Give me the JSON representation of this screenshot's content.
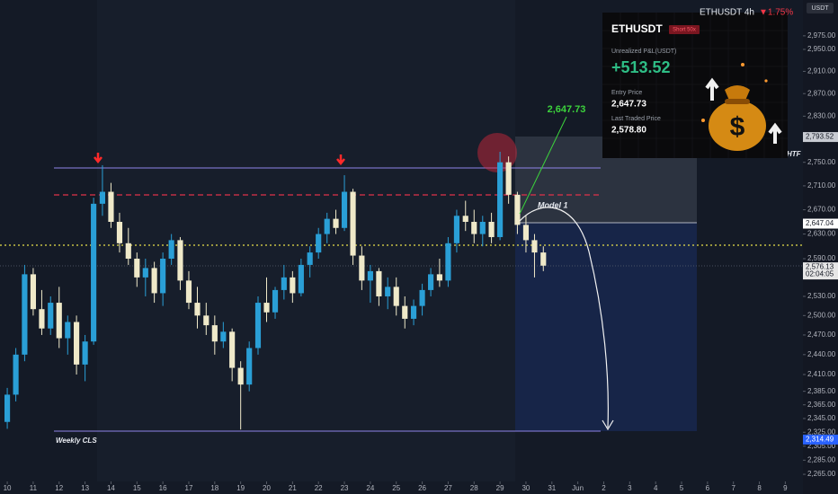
{
  "header": {
    "symbol": "ETHUSDT 4h",
    "change": "▼1.75%",
    "currency": "USDT"
  },
  "card": {
    "symbol": "ETHUSDT",
    "side": "Short 50x",
    "pnl_label": "Unrealized P&L(USDT)",
    "pnl": "+513.52",
    "entry_label": "Entry Price",
    "entry": "2,647.73",
    "last_label": "Last Traded Price",
    "last": "2,578.80"
  },
  "annotations": {
    "entry_price": "2,647.73",
    "model": "Model 1",
    "weekly": "Weekly CLS",
    "htf": "HTF"
  },
  "chart_data": {
    "type": "candlestick",
    "log": true,
    "grid": false,
    "up_color": "#2a9fd6",
    "down_color": "#efe9c9",
    "x": [
      10,
      10.33,
      10.67,
      11,
      11.33,
      11.67,
      12,
      12.33,
      12.67,
      13,
      13.33,
      13.67,
      14,
      14.33,
      14.67,
      15,
      15.33,
      15.67,
      16,
      16.33,
      16.67,
      17,
      17.33,
      17.67,
      18,
      18.33,
      18.67,
      19,
      19.33,
      19.67,
      20,
      20.33,
      20.67,
      21,
      21.33,
      21.67,
      22,
      22.33,
      22.67,
      23,
      23.33,
      23.67,
      24,
      24.33,
      24.67,
      25,
      25.33,
      25.67,
      26,
      26.33,
      26.67,
      27,
      27.33,
      27.67,
      28,
      28.33,
      28.67,
      29,
      29.33,
      29.67,
      30,
      30.33,
      30.67
    ],
    "open": [
      2340,
      2380,
      2440,
      2565,
      2510,
      2480,
      2520,
      2465,
      2490,
      2425,
      2460,
      2680,
      2700,
      2650,
      2615,
      2590,
      2560,
      2575,
      2535,
      2590,
      2620,
      2555,
      2520,
      2500,
      2485,
      2460,
      2475,
      2420,
      2395,
      2450,
      2520,
      2505,
      2540,
      2560,
      2535,
      2580,
      2600,
      2630,
      2655,
      2640,
      2700,
      2595,
      2555,
      2570,
      2530,
      2545,
      2515,
      2495,
      2515,
      2540,
      2565,
      2555,
      2615,
      2660,
      2650,
      2630,
      2650,
      2625,
      2750,
      2695,
      2645,
      2620,
      2600
    ],
    "high": [
      2390,
      2450,
      2580,
      2575,
      2540,
      2530,
      2545,
      2500,
      2500,
      2470,
      2690,
      2745,
      2715,
      2665,
      2640,
      2600,
      2590,
      2585,
      2600,
      2630,
      2625,
      2570,
      2545,
      2520,
      2500,
      2490,
      2480,
      2430,
      2460,
      2530,
      2560,
      2545,
      2580,
      2570,
      2590,
      2610,
      2640,
      2665,
      2670,
      2728,
      2705,
      2610,
      2580,
      2575,
      2560,
      2560,
      2530,
      2525,
      2550,
      2575,
      2590,
      2625,
      2670,
      2685,
      2670,
      2660,
      2665,
      2768,
      2760,
      2700,
      2660,
      2630,
      2610
    ],
    "low": [
      2330,
      2370,
      2430,
      2500,
      2470,
      2470,
      2450,
      2440,
      2410,
      2400,
      2455,
      2660,
      2640,
      2600,
      2580,
      2545,
      2530,
      2520,
      2515,
      2580,
      2540,
      2510,
      2480,
      2470,
      2440,
      2450,
      2400,
      2329,
      2385,
      2440,
      2490,
      2495,
      2525,
      2520,
      2530,
      2560,
      2590,
      2615,
      2630,
      2635,
      2580,
      2540,
      2520,
      2515,
      2510,
      2500,
      2480,
      2485,
      2500,
      2530,
      2545,
      2545,
      2600,
      2635,
      2615,
      2610,
      2615,
      2620,
      2680,
      2630,
      2600,
      2560,
      2570
    ],
    "close": [
      2380,
      2440,
      2565,
      2510,
      2480,
      2520,
      2465,
      2490,
      2425,
      2460,
      2680,
      2700,
      2650,
      2615,
      2590,
      2560,
      2575,
      2535,
      2590,
      2620,
      2555,
      2520,
      2500,
      2485,
      2460,
      2475,
      2420,
      2395,
      2450,
      2520,
      2505,
      2540,
      2560,
      2535,
      2580,
      2600,
      2630,
      2655,
      2640,
      2700,
      2595,
      2555,
      2570,
      2530,
      2545,
      2515,
      2495,
      2515,
      2540,
      2565,
      2555,
      2615,
      2660,
      2650,
      2630,
      2650,
      2625,
      2750,
      2695,
      2645,
      2620,
      2600,
      2578.8
    ],
    "xlim": [
      9.72,
      40.68
    ],
    "xticks": [
      10,
      11,
      12,
      13,
      14,
      15,
      16,
      17,
      18,
      19,
      20,
      21,
      22,
      23,
      24,
      25,
      26,
      27,
      28,
      29,
      30,
      31,
      {
        "value": 32,
        "label": "Jun"
      },
      {
        "value": 33,
        "label": "2"
      },
      {
        "value": 34,
        "label": "3"
      },
      {
        "value": 35,
        "label": "4"
      },
      {
        "value": 36,
        "label": "5"
      },
      {
        "value": 37,
        "label": "6"
      },
      {
        "value": 38,
        "label": "7"
      },
      {
        "value": 39,
        "label": "8"
      },
      {
        "value": 40,
        "label": "9"
      }
    ],
    "ylim": [
      2255,
      3042
    ],
    "yticks": [
      {
        "value": 2975,
        "label": "2,975.00"
      },
      {
        "value": 2950,
        "label": "2,950.00"
      },
      {
        "value": 2910,
        "label": "2,910.00"
      },
      {
        "value": 2870,
        "label": "2,870.00"
      },
      {
        "value": 2830,
        "label": "2,830.00"
      },
      {
        "value": 2750,
        "label": "2,750.00"
      },
      {
        "value": 2710,
        "label": "2,710.00"
      },
      {
        "value": 2670,
        "label": "2,670.00"
      },
      {
        "value": 2630,
        "label": "2,630.00"
      },
      {
        "value": 2590,
        "label": "2,590.00"
      },
      {
        "value": 2530,
        "label": "2,530.00"
      },
      {
        "value": 2500,
        "label": "2,500.00"
      },
      {
        "value": 2470,
        "label": "2,470.00"
      },
      {
        "value": 2440,
        "label": "2,440.00"
      },
      {
        "value": 2410,
        "label": "2,410.00"
      },
      {
        "value": 2385,
        "label": "2,385.00"
      },
      {
        "value": 2365,
        "label": "2,365.00"
      },
      {
        "value": 2345,
        "label": "2,345.00"
      },
      {
        "value": 2325,
        "label": "2,325.00"
      },
      {
        "value": 2305,
        "label": "2,305.00"
      },
      {
        "value": 2285,
        "label": "2,285.00"
      },
      {
        "value": 2265,
        "label": "2,265.00"
      }
    ],
    "price_tags": [
      {
        "value": 2793.52,
        "label": "2,793.52",
        "color": "#c8cbd2"
      },
      {
        "value": 2647.04,
        "label": "2,647.04",
        "color": "#ffffff"
      },
      {
        "value": 2576.13,
        "label": "2,576.13",
        "color": "#e6e6e6",
        "timer": "02:04:05"
      },
      {
        "value": 2314.49,
        "label": "2,314.49",
        "color": "#2962ff"
      }
    ]
  }
}
